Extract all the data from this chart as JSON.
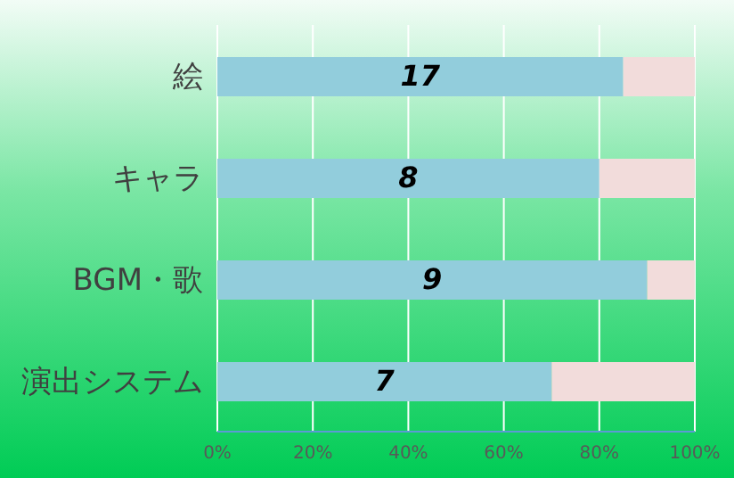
{
  "chart_data": {
    "type": "bar",
    "orientation": "horizontal",
    "stacked": true,
    "categories": [
      "絵",
      "キャラ",
      "BGM・歌",
      "演出システム"
    ],
    "series": [
      {
        "color": "#92cddc",
        "values": [
          85,
          80,
          90,
          70
        ]
      },
      {
        "color": "#f2dcdb",
        "values": [
          15,
          20,
          10,
          30
        ]
      }
    ],
    "xlim": [
      0,
      100
    ],
    "xticks": [
      {
        "value": 0,
        "label": "0%"
      },
      {
        "value": 20,
        "label": "20%"
      },
      {
        "value": 40,
        "label": "40%"
      },
      {
        "value": 60,
        "label": "60%"
      },
      {
        "value": 80,
        "label": "80%"
      },
      {
        "value": 100,
        "label": "100%"
      }
    ],
    "annotations": [
      "17",
      "8",
      "9",
      "7"
    ],
    "grid": "x"
  }
}
